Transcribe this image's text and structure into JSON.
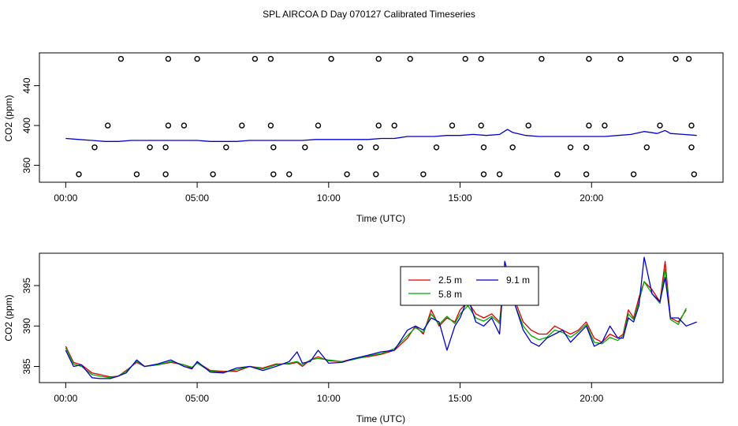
{
  "title": "SPL AIRCOA D  Day 070127  Calibrated Timeseries",
  "chart_data": [
    {
      "type": "line",
      "panel": "top",
      "xlabel": "Time (UTC)",
      "ylabel": "CO2 (ppm)",
      "xlim": [
        -1.0,
        25.0
      ],
      "ylim": [
        343,
        473
      ],
      "x_tick_values": [
        0,
        5,
        10,
        15,
        20
      ],
      "x_tick_labels": [
        "00:00",
        "05:00",
        "10:00",
        "15:00",
        "20:00"
      ],
      "y_tick_values": [
        360,
        400,
        440
      ],
      "y_tick_labels": [
        "360",
        "400",
        "440"
      ],
      "series_color": "#0000cc",
      "series": {
        "name": "CO2",
        "x": [
          0,
          0.5,
          1,
          1.5,
          2,
          2.5,
          3,
          3.5,
          4,
          4.5,
          5,
          5.5,
          6,
          6.5,
          7,
          7.5,
          8,
          8.5,
          9,
          9.5,
          10,
          10.5,
          11,
          11.5,
          12,
          12.5,
          13,
          13.5,
          14,
          14.5,
          15,
          15.5,
          16,
          16.5,
          16.8,
          17,
          17.5,
          18,
          18.5,
          19,
          19.5,
          20,
          20.5,
          21,
          21.5,
          22,
          22.5,
          22.8,
          23,
          23.5,
          24
        ],
        "values": [
          387,
          386,
          385,
          384,
          384,
          385,
          385,
          385,
          385,
          385,
          385,
          384,
          384,
          384,
          385,
          385,
          385,
          385,
          385,
          386,
          386,
          386,
          386,
          386,
          387,
          387,
          389,
          389,
          389,
          390,
          390,
          391,
          390,
          391,
          396,
          393,
          390,
          389,
          389,
          389,
          389,
          389,
          389,
          390,
          391,
          394,
          392,
          395,
          392,
          391,
          390
        ]
      },
      "markers": [
        {
          "x": 2.1,
          "y": 467
        },
        {
          "x": 3.9,
          "y": 467
        },
        {
          "x": 5.0,
          "y": 467
        },
        {
          "x": 7.2,
          "y": 467
        },
        {
          "x": 7.8,
          "y": 467
        },
        {
          "x": 10.1,
          "y": 467
        },
        {
          "x": 11.9,
          "y": 467
        },
        {
          "x": 13.1,
          "y": 467
        },
        {
          "x": 15.2,
          "y": 467
        },
        {
          "x": 15.8,
          "y": 467
        },
        {
          "x": 18.1,
          "y": 467
        },
        {
          "x": 19.9,
          "y": 467
        },
        {
          "x": 21.1,
          "y": 467
        },
        {
          "x": 23.2,
          "y": 467
        },
        {
          "x": 23.7,
          "y": 467
        },
        {
          "x": 1.6,
          "y": 400
        },
        {
          "x": 3.9,
          "y": 400
        },
        {
          "x": 4.5,
          "y": 400
        },
        {
          "x": 6.7,
          "y": 400
        },
        {
          "x": 7.8,
          "y": 400
        },
        {
          "x": 9.6,
          "y": 400
        },
        {
          "x": 11.9,
          "y": 400
        },
        {
          "x": 12.5,
          "y": 400
        },
        {
          "x": 14.7,
          "y": 400
        },
        {
          "x": 15.8,
          "y": 400
        },
        {
          "x": 17.6,
          "y": 400
        },
        {
          "x": 19.9,
          "y": 400
        },
        {
          "x": 20.5,
          "y": 400
        },
        {
          "x": 22.6,
          "y": 400
        },
        {
          "x": 23.8,
          "y": 400
        },
        {
          "x": 1.1,
          "y": 378
        },
        {
          "x": 3.2,
          "y": 378
        },
        {
          "x": 3.8,
          "y": 378
        },
        {
          "x": 6.1,
          "y": 378
        },
        {
          "x": 7.9,
          "y": 378
        },
        {
          "x": 9.1,
          "y": 378
        },
        {
          "x": 11.2,
          "y": 378
        },
        {
          "x": 11.8,
          "y": 378
        },
        {
          "x": 14.1,
          "y": 378
        },
        {
          "x": 15.9,
          "y": 378
        },
        {
          "x": 17.0,
          "y": 378
        },
        {
          "x": 19.2,
          "y": 378
        },
        {
          "x": 19.8,
          "y": 378
        },
        {
          "x": 22.1,
          "y": 378
        },
        {
          "x": 23.8,
          "y": 378
        },
        {
          "x": 0.5,
          "y": 351
        },
        {
          "x": 2.7,
          "y": 351
        },
        {
          "x": 3.8,
          "y": 351
        },
        {
          "x": 5.6,
          "y": 351
        },
        {
          "x": 7.9,
          "y": 351
        },
        {
          "x": 8.5,
          "y": 351
        },
        {
          "x": 10.7,
          "y": 351
        },
        {
          "x": 11.8,
          "y": 351
        },
        {
          "x": 13.6,
          "y": 351
        },
        {
          "x": 15.9,
          "y": 351
        },
        {
          "x": 16.5,
          "y": 351
        },
        {
          "x": 18.7,
          "y": 351
        },
        {
          "x": 19.8,
          "y": 351
        },
        {
          "x": 21.6,
          "y": 351
        },
        {
          "x": 23.9,
          "y": 351
        }
      ]
    },
    {
      "type": "line",
      "panel": "bottom",
      "xlabel": "Time (UTC)",
      "ylabel": "CO2 (ppm)",
      "xlim": [
        -1.0,
        25.0
      ],
      "ylim": [
        383.0,
        399.0
      ],
      "x_tick_values": [
        0,
        5,
        10,
        15,
        20
      ],
      "x_tick_labels": [
        "00:00",
        "05:00",
        "10:00",
        "15:00",
        "20:00"
      ],
      "y_tick_values": [
        385,
        390,
        395
      ],
      "y_tick_labels": [
        "385",
        "390",
        "395"
      ],
      "legend_position": "top-center",
      "series": [
        {
          "name": "2.5 m",
          "color": "#dd0000",
          "x": [
            0,
            0.3,
            0.6,
            1.0,
            1.3,
            1.7,
            2.0,
            2.3,
            2.7,
            3.0,
            3.5,
            4.0,
            4.5,
            4.8,
            5.0,
            5.5,
            6.0,
            6.5,
            7.0,
            7.5,
            8.0,
            8.5,
            8.8,
            9.0,
            9.3,
            9.6,
            10.0,
            10.5,
            11.0,
            11.5,
            12.0,
            12.5,
            13.0,
            13.3,
            13.6,
            13.9,
            14.2,
            14.5,
            14.8,
            15.0,
            15.3,
            15.6,
            15.9,
            16.2,
            16.5,
            16.7,
            16.9,
            17.1,
            17.4,
            17.7,
            18.0,
            18.3,
            18.6,
            18.9,
            19.2,
            19.5,
            19.8,
            20.1,
            20.4,
            20.7,
            21.0,
            21.2,
            21.4,
            21.6,
            21.8,
            22.0,
            22.3,
            22.6,
            22.8,
            23.0,
            23.3,
            23.6
          ],
          "values": [
            387.5,
            385.5,
            385.2,
            384.2,
            384.0,
            383.7,
            383.8,
            384.5,
            385.5,
            385.0,
            385.2,
            385.5,
            385.2,
            384.8,
            385.5,
            384.5,
            384.4,
            384.4,
            385.0,
            384.8,
            385.3,
            385.3,
            385.5,
            385.0,
            385.8,
            386.2,
            385.7,
            385.6,
            386.0,
            386.2,
            386.5,
            387.0,
            388.5,
            390.0,
            389.0,
            392.0,
            390.0,
            391.0,
            390.5,
            392.0,
            393.0,
            391.5,
            391.0,
            391.5,
            390.5,
            397.0,
            396.5,
            393.0,
            390.5,
            389.5,
            389.0,
            389.0,
            390.0,
            389.5,
            389.0,
            389.5,
            390.5,
            388.5,
            388.0,
            389.0,
            388.5,
            389.0,
            392.0,
            391.0,
            393.5,
            395.5,
            394.5,
            393.0,
            398.0,
            391.0,
            390.5,
            392.0
          ]
        },
        {
          "name": "5.8 m",
          "color": "#00aa00",
          "x": [
            0,
            0.3,
            0.6,
            1.0,
            1.3,
            1.7,
            2.0,
            2.3,
            2.7,
            3.0,
            3.5,
            4.0,
            4.5,
            4.8,
            5.0,
            5.5,
            6.0,
            6.5,
            7.0,
            7.5,
            8.0,
            8.5,
            8.8,
            9.0,
            9.3,
            9.6,
            10.0,
            10.5,
            11.0,
            11.5,
            12.0,
            12.5,
            13.0,
            13.3,
            13.6,
            13.9,
            14.2,
            14.5,
            14.8,
            15.0,
            15.3,
            15.6,
            15.9,
            16.2,
            16.5,
            16.7,
            16.9,
            17.1,
            17.4,
            17.7,
            18.0,
            18.3,
            18.6,
            18.9,
            19.2,
            19.5,
            19.8,
            20.1,
            20.4,
            20.7,
            21.0,
            21.2,
            21.4,
            21.6,
            21.8,
            22.0,
            22.3,
            22.6,
            22.8,
            23.0,
            23.3,
            23.6
          ],
          "values": [
            387.3,
            385.3,
            385.0,
            384.0,
            383.8,
            383.6,
            383.8,
            384.4,
            385.6,
            385.0,
            385.2,
            385.6,
            385.2,
            384.9,
            385.4,
            384.4,
            384.3,
            384.6,
            385.0,
            384.7,
            385.2,
            385.4,
            385.6,
            385.2,
            385.8,
            386.0,
            385.8,
            385.6,
            385.9,
            386.3,
            386.6,
            387.2,
            388.8,
            389.8,
            389.2,
            391.5,
            390.2,
            391.2,
            390.3,
            391.5,
            392.5,
            391.0,
            390.6,
            391.2,
            390.3,
            396.2,
            396.0,
            392.5,
            390.0,
            388.8,
            388.3,
            388.6,
            389.5,
            389.2,
            388.6,
            389.3,
            390.2,
            388.0,
            387.8,
            388.6,
            388.2,
            388.8,
            391.5,
            390.8,
            393.0,
            395.5,
            394.0,
            392.8,
            397.0,
            390.8,
            390.2,
            392.2
          ]
        },
        {
          "name": "9.1 m",
          "color": "#0000cc",
          "x": [
            0,
            0.3,
            0.6,
            1.0,
            1.3,
            1.7,
            2.0,
            2.3,
            2.7,
            3.0,
            3.5,
            4.0,
            4.5,
            4.8,
            5.0,
            5.5,
            6.0,
            6.5,
            7.0,
            7.5,
            8.0,
            8.5,
            8.8,
            9.0,
            9.3,
            9.6,
            10.0,
            10.5,
            11.0,
            11.5,
            12.0,
            12.5,
            13.0,
            13.3,
            13.6,
            13.9,
            14.2,
            14.5,
            14.8,
            15.0,
            15.3,
            15.6,
            15.9,
            16.2,
            16.5,
            16.7,
            16.9,
            17.1,
            17.4,
            17.7,
            18.0,
            18.3,
            18.6,
            18.9,
            19.2,
            19.5,
            19.8,
            20.1,
            20.4,
            20.7,
            21.0,
            21.2,
            21.4,
            21.6,
            21.8,
            22.0,
            22.3,
            22.6,
            22.8,
            23.0,
            23.3,
            23.6,
            24.0
          ],
          "values": [
            387.0,
            385.0,
            385.2,
            383.6,
            383.5,
            383.5,
            383.8,
            384.2,
            385.8,
            385.0,
            385.3,
            385.8,
            385.0,
            384.7,
            385.6,
            384.3,
            384.2,
            384.8,
            385.0,
            384.5,
            385.0,
            385.6,
            386.8,
            385.4,
            385.6,
            387.0,
            385.4,
            385.5,
            386.0,
            386.4,
            386.8,
            387.0,
            389.5,
            390.0,
            389.5,
            391.0,
            390.5,
            387.0,
            390.0,
            391.0,
            393.5,
            390.5,
            390.0,
            391.0,
            389.0,
            398.0,
            395.5,
            392.5,
            389.5,
            388.0,
            387.5,
            388.5,
            389.0,
            389.5,
            388.0,
            389.0,
            390.0,
            387.5,
            388.0,
            390.0,
            388.5,
            388.5,
            391.0,
            390.5,
            392.5,
            398.5,
            394.0,
            393.0,
            396.0,
            391.0,
            391.0,
            390.0,
            390.5
          ]
        }
      ]
    }
  ]
}
